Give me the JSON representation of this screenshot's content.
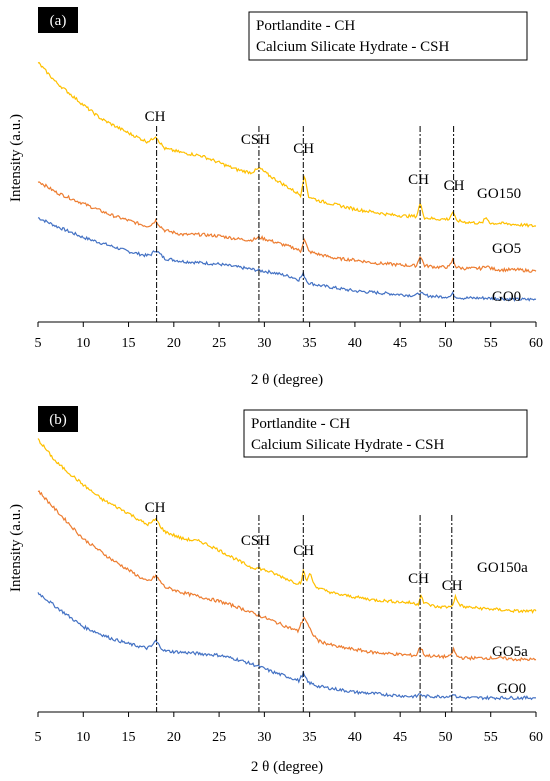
{
  "figure": {
    "colors": {
      "GO0": "#4472C4",
      "GO5": "#ED7D31",
      "GO150": "#FFC000",
      "axis": "#000000",
      "marker": "#000000"
    }
  },
  "chart_data": [
    {
      "type": "line",
      "panel_label": "(a)",
      "xlabel": "2 θ (degree)",
      "ylabel": "Intensity (a.u.)",
      "xlim": [
        5,
        60
      ],
      "ylim": [
        0,
        100
      ],
      "xticks": [
        5,
        10,
        15,
        20,
        25,
        30,
        35,
        40,
        45,
        50,
        55,
        60
      ],
      "grid": false,
      "legend_box": [
        "Portlandite - CH",
        "Calcium Silicate Hydrate - CSH"
      ],
      "series": [
        {
          "name": "GO0",
          "color": "#4472C4",
          "x": [
            5,
            7,
            10,
            13,
            15,
            17,
            17.5,
            18,
            18.5,
            19,
            21,
            23,
            25,
            27,
            29,
            31,
            33,
            33.8,
            34.3,
            34.8,
            36,
            38,
            40,
            42,
            44,
            46,
            46.8,
            47.2,
            47.6,
            49,
            50.5,
            50.8,
            51.1,
            52,
            54,
            56,
            58,
            60
          ],
          "y": [
            37,
            34,
            30,
            27,
            25,
            23.5,
            24,
            25.5,
            24,
            22.5,
            21.5,
            21,
            20.5,
            19.5,
            18.5,
            17.5,
            16,
            15,
            17,
            14,
            13,
            12,
            11,
            10.5,
            10,
            9.5,
            9.5,
            10.5,
            9.5,
            9,
            9,
            10,
            9,
            8.5,
            8.5,
            8.3,
            8,
            8
          ]
        },
        {
          "name": "GO5",
          "color": "#ED7D31",
          "x": [
            5,
            7,
            10,
            13,
            15,
            17,
            17.5,
            18,
            18.5,
            19,
            21,
            23,
            25,
            27,
            28.5,
            29.5,
            30.5,
            32,
            33.5,
            34,
            34.4,
            34.9,
            36,
            38,
            40,
            42,
            44,
            46,
            46.8,
            47.2,
            47.7,
            49,
            50.4,
            50.8,
            51.2,
            52,
            54,
            54.5,
            55,
            56,
            58,
            60
          ],
          "y": [
            50,
            46,
            42,
            38,
            36,
            34,
            34.5,
            36,
            34,
            32.5,
            31,
            31,
            30.5,
            29.5,
            29,
            30,
            29,
            27.5,
            26,
            25,
            29.5,
            25,
            24,
            22.5,
            22,
            21,
            20.5,
            20,
            20,
            23.5,
            20,
            19.5,
            19.5,
            22,
            19.5,
            19,
            19,
            20,
            19,
            18.5,
            18.5,
            18
          ]
        },
        {
          "name": "GO150",
          "color": "#FFC000",
          "x": [
            5,
            7,
            10,
            12,
            15,
            17,
            17.5,
            18,
            18.5,
            19,
            21,
            23,
            25,
            27,
            28.5,
            29.5,
            30.5,
            32,
            33.5,
            34,
            34.4,
            34.9,
            36,
            38,
            40,
            42,
            44,
            46,
            46.8,
            47.2,
            47.7,
            49,
            50.4,
            50.8,
            51.2,
            52,
            54,
            54.5,
            55,
            56,
            58,
            60
          ],
          "y": [
            92,
            85,
            77,
            72,
            67,
            64,
            64.5,
            66,
            63.5,
            61.5,
            60,
            59,
            56.5,
            54,
            53,
            54.5,
            52,
            49,
            46,
            45,
            52,
            44.5,
            43,
            41.5,
            40,
            39,
            38,
            37.5,
            37.5,
            42,
            37,
            36.5,
            36.5,
            39,
            36,
            35.5,
            35,
            37,
            35,
            35,
            34.5,
            34
          ]
        }
      ],
      "annotations": [
        {
          "text": "CH",
          "x": 18.1
        },
        {
          "text": "CSH",
          "x": 29.4
        },
        {
          "text": "CH",
          "x": 34.3
        },
        {
          "text": "CH",
          "x": 47.2
        },
        {
          "text": "CH",
          "x": 50.9
        }
      ],
      "series_labels": [
        "GO150",
        "GO5",
        "GO0"
      ]
    },
    {
      "type": "line",
      "panel_label": "(b)",
      "xlabel": "2 θ (degree)",
      "ylabel": "Intensity (a.u.)",
      "xlim": [
        5,
        60
      ],
      "ylim": [
        0,
        100
      ],
      "xticks": [
        5,
        10,
        15,
        20,
        25,
        30,
        35,
        40,
        45,
        50,
        55,
        60
      ],
      "grid": false,
      "legend_box": [
        "Portlandite - CH",
        "Calcium Silicate Hydrate - CSH"
      ],
      "series": [
        {
          "name": "GO0",
          "color": "#4472C4",
          "x": [
            5,
            7,
            10,
            13,
            15,
            17,
            17.5,
            18,
            18.5,
            19,
            21,
            23,
            25,
            27,
            29,
            31,
            33,
            33.8,
            34.3,
            34.8,
            36,
            38,
            40,
            42,
            44,
            46,
            46.8,
            47.2,
            47.6,
            49,
            50.5,
            50.8,
            51.1,
            52,
            54,
            56,
            58,
            60
          ],
          "y": [
            42,
            37,
            30,
            26,
            24,
            22.5,
            23,
            25,
            23,
            21.5,
            21,
            20.5,
            20,
            18.5,
            16.5,
            14,
            12,
            11,
            13.5,
            10.5,
            9,
            8,
            7,
            6.5,
            6,
            5.5,
            5.5,
            6.5,
            5.5,
            5.5,
            5.5,
            6.5,
            5.5,
            5,
            5,
            5,
            5,
            5
          ]
        },
        {
          "name": "GO5",
          "color": "#ED7D31",
          "x": [
            5,
            7,
            10,
            13,
            15,
            17,
            17.5,
            18,
            18.5,
            19,
            21,
            23,
            25,
            27,
            29,
            31,
            32.5,
            33.7,
            34.4,
            35.2,
            36,
            38,
            40,
            42,
            44,
            46,
            46.8,
            47.2,
            47.7,
            49,
            50.5,
            50.9,
            51.3,
            52,
            54,
            56,
            58,
            60
          ],
          "y": [
            78,
            71,
            61,
            54,
            50,
            46,
            46.5,
            48,
            46,
            44,
            42,
            40.5,
            39,
            37,
            34.5,
            32,
            30,
            28.5,
            33.5,
            28,
            25,
            23,
            22,
            21,
            20.5,
            20,
            20,
            23,
            20,
            19.5,
            19.5,
            22,
            19.5,
            19,
            19,
            19,
            18.5,
            18.5
          ]
        },
        {
          "name": "GO150",
          "color": "#FFC000",
          "x": [
            5,
            7,
            10,
            12,
            15,
            17,
            17.5,
            18,
            18.5,
            19,
            21,
            23,
            25,
            27,
            28.5,
            29.5,
            30.5,
            32,
            33.5,
            34,
            34.3,
            34.7,
            35,
            35.5,
            36,
            38,
            40,
            42,
            44,
            46,
            47,
            47.3,
            47.6,
            48,
            49,
            50.5,
            50.8,
            51.1,
            51.5,
            52,
            54,
            56,
            58,
            60
          ],
          "y": [
            96,
            88,
            80,
            75,
            70,
            66,
            66.5,
            68,
            65.5,
            63.5,
            61,
            60,
            57,
            53.5,
            51,
            50.5,
            49.5,
            47.5,
            45.5,
            45.5,
            49.5,
            46,
            49,
            45,
            43.5,
            41.5,
            40.5,
            39.5,
            39,
            38.5,
            38,
            41.5,
            38.5,
            38,
            37,
            37,
            38,
            40.5,
            38,
            37,
            36.5,
            36,
            35.5,
            35.5
          ]
        }
      ],
      "annotations": [
        {
          "text": "CH",
          "x": 18.1
        },
        {
          "text": "CSH",
          "x": 29.4
        },
        {
          "text": "CH",
          "x": 34.3
        },
        {
          "text": "CH",
          "x": 47.2
        },
        {
          "text": "CH",
          "x": 50.7
        }
      ],
      "series_labels": [
        "GO150a",
        "GO5a",
        "GO0"
      ]
    }
  ]
}
